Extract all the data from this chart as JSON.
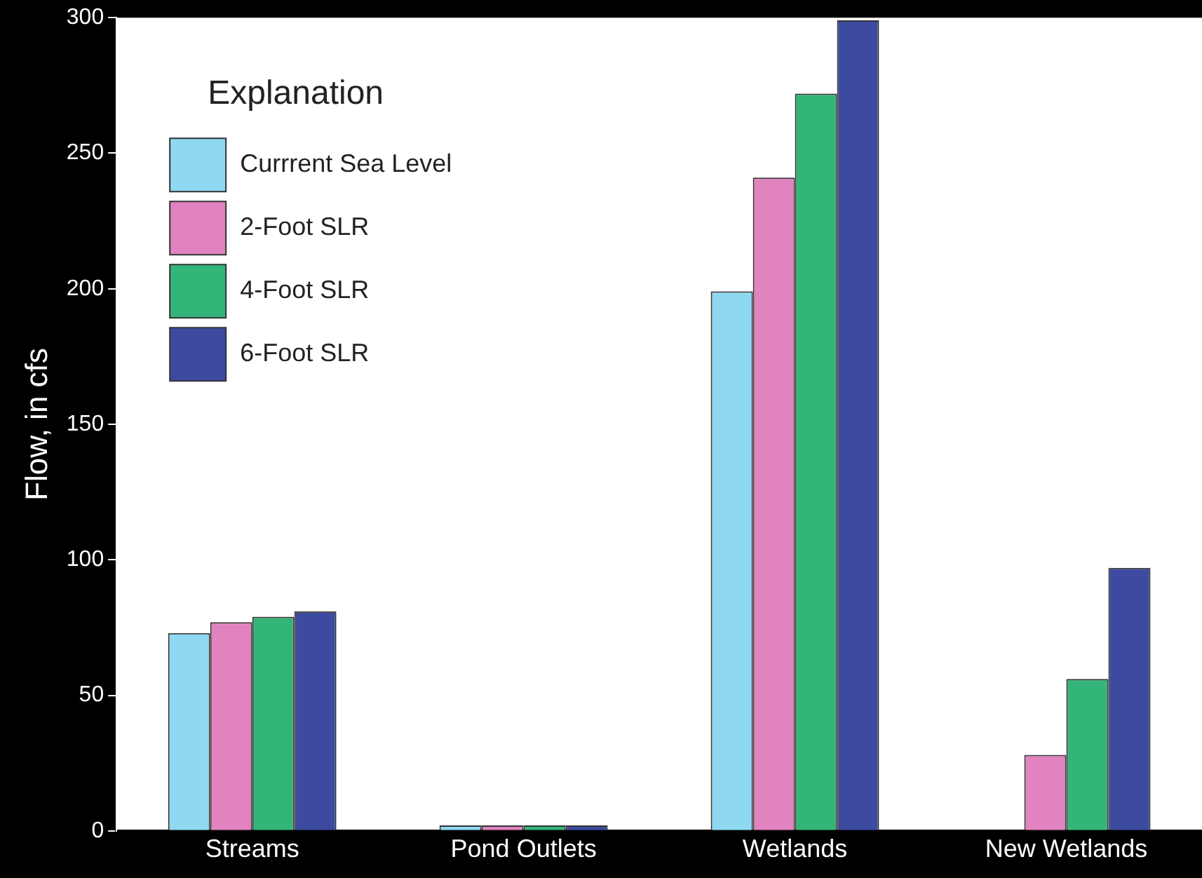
{
  "chart_data": {
    "type": "bar",
    "ylabel": "Flow, in cfs",
    "legend_title": "Explanation",
    "categories": [
      "Streams",
      "Pond Outlets",
      "Wetlands",
      "New Wetlands"
    ],
    "series": [
      {
        "name": "Currrent Sea Level",
        "color": "#8fd8f2",
        "values": [
          73,
          2,
          199,
          0
        ]
      },
      {
        "name": "2-Foot SLR",
        "color": "#e083bf",
        "values": [
          77,
          2,
          241,
          28
        ]
      },
      {
        "name": "4-Foot SLR",
        "color": "#33b57a",
        "values": [
          79,
          2,
          272,
          56
        ]
      },
      {
        "name": "6-Foot SLR",
        "color": "#3c4ba0",
        "values": [
          81,
          2,
          299,
          97
        ]
      }
    ],
    "ylim": [
      0,
      300
    ],
    "yticks": [
      0,
      50,
      100,
      150,
      200,
      250,
      300
    ],
    "grid": false,
    "legend": "top left"
  }
}
